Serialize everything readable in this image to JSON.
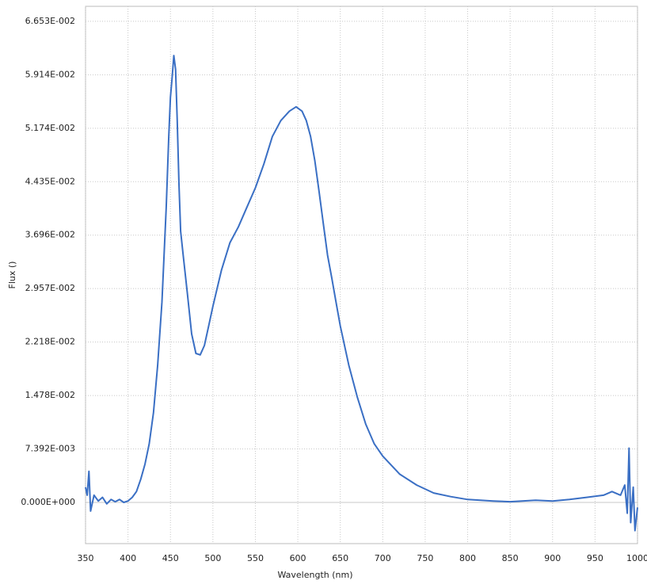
{
  "chart_data": {
    "type": "line",
    "xlabel": "Wavelength (nm)",
    "ylabel": "Flux ()",
    "color": "#3a6fc4",
    "grid": true,
    "xlim": [
      350,
      1000
    ],
    "xticks": [
      350,
      400,
      450,
      500,
      550,
      600,
      650,
      700,
      750,
      800,
      850,
      900,
      950,
      1000
    ],
    "ylim": [
      -0.0057,
      0.0686
    ],
    "yticks": [
      {
        "value": 0,
        "label": "0.000E+000"
      },
      {
        "value": 0.007392,
        "label": "7.392E-003"
      },
      {
        "value": 0.01478,
        "label": "1.478E-002"
      },
      {
        "value": 0.02218,
        "label": "2.218E-002"
      },
      {
        "value": 0.02957,
        "label": "2.957E-002"
      },
      {
        "value": 0.03696,
        "label": "3.696E-002"
      },
      {
        "value": 0.04435,
        "label": "4.435E-002"
      },
      {
        "value": 0.05174,
        "label": "5.174E-002"
      },
      {
        "value": 0.05914,
        "label": "5.914E-002"
      },
      {
        "value": 0.06653,
        "label": "6.653E-002"
      }
    ],
    "x": [
      350,
      352,
      354,
      356,
      360,
      365,
      370,
      375,
      380,
      385,
      390,
      395,
      400,
      405,
      410,
      415,
      420,
      425,
      430,
      435,
      440,
      445,
      448,
      450,
      452,
      454,
      456,
      458,
      460,
      462,
      465,
      470,
      475,
      480,
      485,
      490,
      495,
      500,
      510,
      520,
      530,
      540,
      550,
      560,
      570,
      580,
      590,
      598,
      605,
      610,
      615,
      620,
      625,
      630,
      635,
      640,
      645,
      650,
      660,
      670,
      680,
      690,
      700,
      720,
      740,
      760,
      780,
      800,
      830,
      850,
      880,
      900,
      920,
      940,
      960,
      970,
      980,
      985,
      988,
      990,
      992,
      995,
      997,
      1000
    ],
    "values": [
      0.0021,
      0.001,
      0.0043,
      -0.0012,
      0.001,
      0.0002,
      0.0007,
      -0.0002,
      0.0004,
      0.0001,
      0.0004,
      0,
      0.0002,
      0.0007,
      0.0015,
      0.0032,
      0.0053,
      0.0081,
      0.0124,
      0.019,
      0.0277,
      0.0408,
      0.0506,
      0.056,
      0.0588,
      0.0618,
      0.0599,
      0.0528,
      0.044,
      0.0375,
      0.0342,
      0.0288,
      0.0233,
      0.0206,
      0.0204,
      0.0217,
      0.0244,
      0.0271,
      0.0321,
      0.0359,
      0.0381,
      0.0408,
      0.0435,
      0.0468,
      0.0506,
      0.0528,
      0.0541,
      0.0547,
      0.0541,
      0.0528,
      0.0506,
      0.0473,
      0.043,
      0.0386,
      0.0342,
      0.031,
      0.0277,
      0.0244,
      0.019,
      0.0146,
      0.0108,
      0.0081,
      0.0064,
      0.0039,
      0.0024,
      0.0013,
      0.0008,
      0.0004,
      0.0002,
      0.0001,
      0.0003,
      0.0002,
      0.0004,
      0.0007,
      0.001,
      0.0015,
      0.001,
      0.0024,
      -0.0015,
      0.0075,
      -0.0028,
      0.0021,
      -0.0039,
      -0.0007
    ]
  }
}
